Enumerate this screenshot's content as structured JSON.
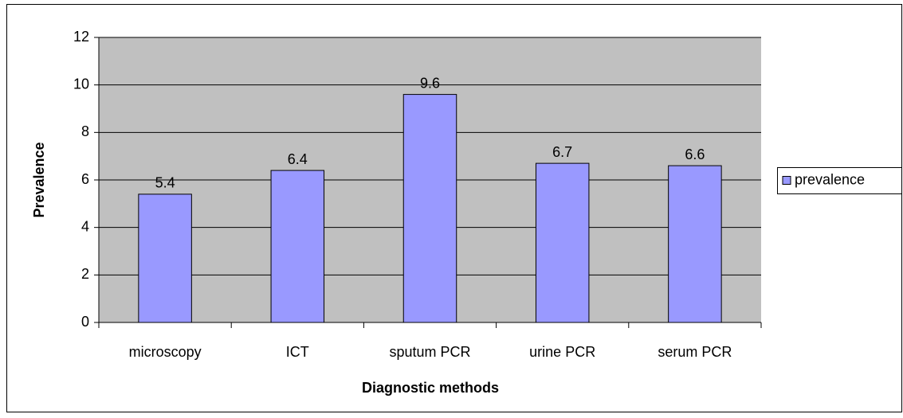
{
  "chart_data": {
    "type": "bar",
    "categories": [
      "microscopy",
      "ICT",
      "sputum PCR",
      "urine PCR",
      "serum PCR"
    ],
    "series": [
      {
        "name": "prevalence",
        "color": "#9999ff",
        "values": [
          5.4,
          6.4,
          9.6,
          6.7,
          6.6
        ]
      }
    ],
    "x_label": "Diagnostic methods",
    "y_label": "Prevalence",
    "ylim": [
      0,
      12
    ],
    "yticks": [
      0,
      2,
      4,
      6,
      8,
      10,
      12
    ],
    "grid": true,
    "legend": "right"
  }
}
